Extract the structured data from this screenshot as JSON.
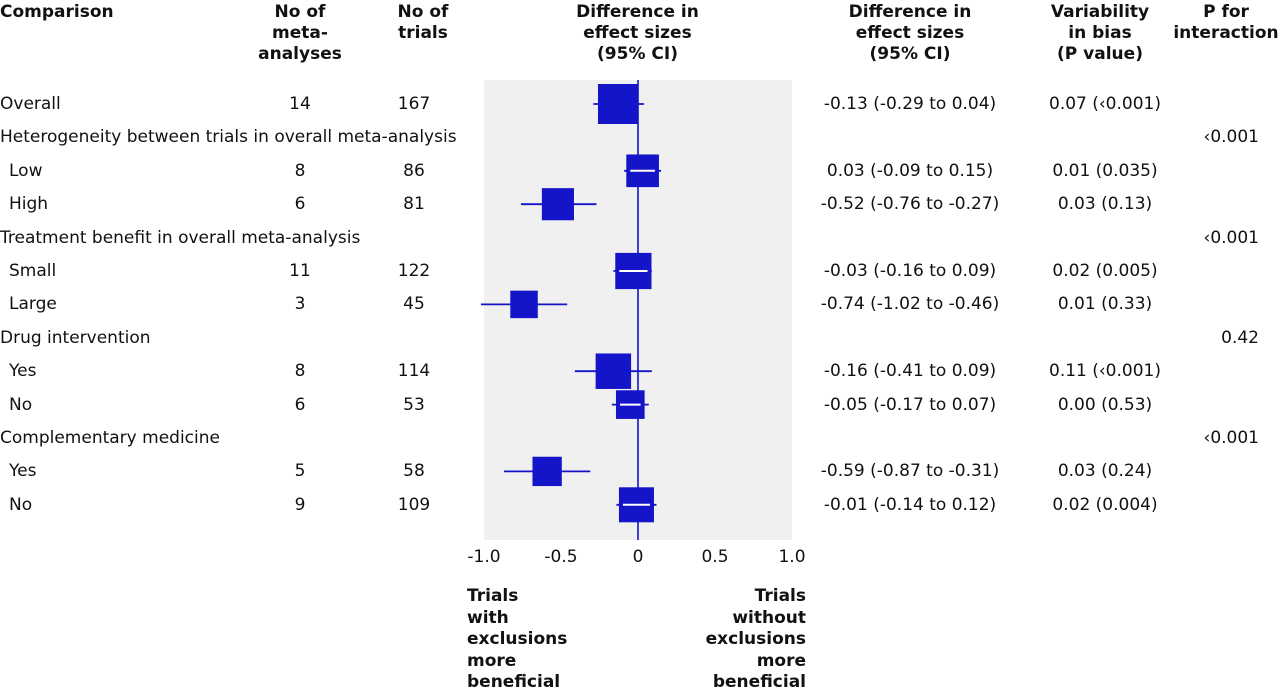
{
  "headers": {
    "comparison": "Comparison",
    "meta": "No of\nmeta-\nanalyses",
    "trials": "No of\ntrials",
    "diff_plot": "Difference in\neffect sizes\n(95% CI)",
    "diff_text": "Difference in\neffect sizes\n(95% CI)",
    "variability": "Variability\nin bias\n(P value)",
    "interaction": "P for\ninteraction"
  },
  "footer": {
    "left": "Trials\nwith\nexclusions\nmore\nbeneficial",
    "right": "Trials\nwithout\nexclusions\nmore\nbeneficial"
  },
  "colors": {
    "marker": "#1414c8",
    "panel": "#f0f0f0",
    "text": "#111111"
  },
  "chart_data": {
    "type": "forest",
    "xlim": [
      -1.0,
      1.0
    ],
    "ticks": [
      "-1.0",
      "-0.5",
      "0",
      "0.5",
      "1.0"
    ],
    "tick_values": [
      -1.0,
      -0.5,
      0,
      0.5,
      1.0
    ],
    "rows": [
      {
        "kind": "item",
        "label": "Overall",
        "indent": false,
        "meta": "14",
        "trials": "167",
        "est": -0.13,
        "lo": -0.29,
        "hi": 0.04,
        "ci": "-0.13 (-0.29 to 0.04)",
        "var": "0.07 (‹0.001)",
        "p": ""
      },
      {
        "kind": "group",
        "label": "Heterogeneity between trials in overall meta-analysis",
        "p": "‹0.001"
      },
      {
        "kind": "item",
        "label": "Low",
        "indent": true,
        "meta": "8",
        "trials": "86",
        "est": 0.03,
        "lo": -0.09,
        "hi": 0.15,
        "ci": "0.03 (-0.09 to 0.15)",
        "var": "0.01 (0.035)",
        "p": ""
      },
      {
        "kind": "item",
        "label": "High",
        "indent": true,
        "meta": "6",
        "trials": "81",
        "est": -0.52,
        "lo": -0.76,
        "hi": -0.27,
        "ci": "-0.52 (-0.76 to -0.27)",
        "var": "0.03 (0.13)",
        "p": ""
      },
      {
        "kind": "group",
        "label": "Treatment benefit in overall meta-analysis",
        "p": "‹0.001"
      },
      {
        "kind": "item",
        "label": "Small",
        "indent": true,
        "meta": "11",
        "trials": "122",
        "est": -0.03,
        "lo": -0.16,
        "hi": 0.09,
        "ci": "-0.03 (-0.16 to 0.09)",
        "var": "0.02 (0.005)",
        "p": ""
      },
      {
        "kind": "item",
        "label": "Large",
        "indent": true,
        "meta": "3",
        "trials": "45",
        "est": -0.74,
        "lo": -1.02,
        "hi": -0.46,
        "ci": "-0.74 (-1.02 to -0.46)",
        "var": "0.01 (0.33)",
        "p": ""
      },
      {
        "kind": "group",
        "label": "Drug intervention",
        "p": "0.42"
      },
      {
        "kind": "item",
        "label": "Yes",
        "indent": true,
        "meta": "8",
        "trials": "114",
        "est": -0.16,
        "lo": -0.41,
        "hi": 0.09,
        "ci": "-0.16 (-0.41 to 0.09)",
        "var": "0.11 (‹0.001)",
        "p": ""
      },
      {
        "kind": "item",
        "label": "No",
        "indent": true,
        "meta": "6",
        "trials": "53",
        "est": -0.05,
        "lo": -0.17,
        "hi": 0.07,
        "ci": "-0.05 (-0.17 to 0.07)",
        "var": "0.00 (0.53)",
        "p": ""
      },
      {
        "kind": "group",
        "label": "Complementary medicine",
        "p": "‹0.001"
      },
      {
        "kind": "item",
        "label": "Yes",
        "indent": true,
        "meta": "5",
        "trials": "58",
        "est": -0.59,
        "lo": -0.87,
        "hi": -0.31,
        "ci": "-0.59 (-0.87 to -0.31)",
        "var": "0.03 (0.24)",
        "p": ""
      },
      {
        "kind": "item",
        "label": "No",
        "indent": true,
        "meta": "9",
        "trials": "109",
        "est": -0.01,
        "lo": -0.14,
        "hi": 0.12,
        "ci": "-0.01 (-0.14 to 0.12)",
        "var": "0.02 (0.004)",
        "p": ""
      }
    ]
  }
}
